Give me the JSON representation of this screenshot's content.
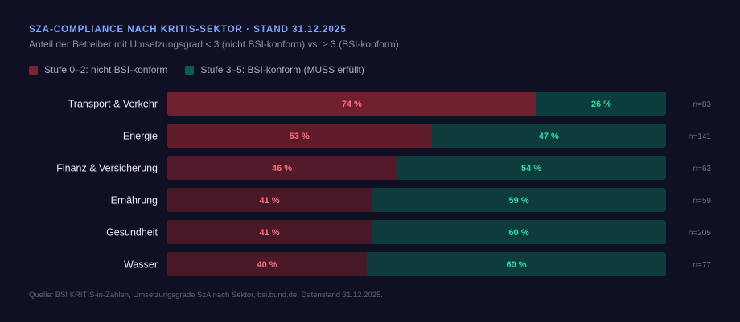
{
  "title": "SZA-COMPLIANCE NACH KRITIS-SEKTOR · STAND 31.12.2025",
  "subtitle": "Anteil der Betreiber mit Umsetzungsgrad < 3 (nicht BSI-konform) vs. ≥ 3 (BSI-konform)",
  "legend": [
    {
      "label": "Stufe 0–2: nicht BSI-konform",
      "color": "#7a2433"
    },
    {
      "label": "Stufe 3–5: BSI-konform (MUSS erfüllt)",
      "color": "#0f5a4e"
    }
  ],
  "source": "Quelle: BSI KRITIS-in-Zahlen, Umsetzungsgrade SzA nach Sektor, bsi.bund.de, Datenstand 31.12.2025.",
  "colors": {
    "non_compliant_label": "#ff6b7f",
    "compliant_label": "#2fe0a8",
    "category_label": "#e4e5ee",
    "n_label": "#6c6f86"
  },
  "chart_data": {
    "type": "bar",
    "orientation": "horizontal",
    "stacked": true,
    "categories": [
      "Transport & Verkehr",
      "Energie",
      "Finanz & Versicherung",
      "Ernährung",
      "Gesundheit",
      "Wasser"
    ],
    "series": [
      {
        "name": "Stufe 0–2: nicht BSI-konform",
        "values": [
          74,
          53,
          46,
          41,
          41,
          40
        ],
        "labels": [
          "74 %",
          "53 %",
          "46 %",
          "41 %",
          "41 %",
          "40 %"
        ],
        "colors": [
          "#6f1f2e",
          "#5e1c2b",
          "#521a2a",
          "#4a1929",
          "#4a1929",
          "#4a1929"
        ]
      },
      {
        "name": "Stufe 3–5: BSI-konform (MUSS erfüllt)",
        "values": [
          26,
          47,
          54,
          59,
          60,
          60
        ],
        "labels": [
          "26 %",
          "47 %",
          "54 %",
          "59 %",
          "60 %",
          "60 %"
        ],
        "colors": [
          "#0d3c3c",
          "#0e3c3d",
          "#0e3c3d",
          "#0e3c3d",
          "#0e3c3d",
          "#0e3c3d"
        ]
      }
    ],
    "n_labels": [
      "n=83",
      "n=141",
      "n=63",
      "n=59",
      "n=205",
      "n=77"
    ],
    "xlim": [
      0,
      100
    ],
    "grid": false,
    "legend_position": "top-left"
  }
}
